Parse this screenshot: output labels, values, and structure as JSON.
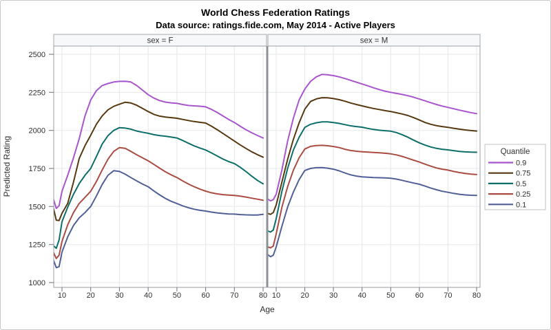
{
  "header": {
    "title": "World Chess Federation Ratings",
    "subtitle": "Data source: ratings.fide.com, May 2014 - Active Players"
  },
  "chart_data": {
    "type": "line",
    "title": "World Chess Federation Ratings",
    "subtitle": "Data source: ratings.fide.com, May 2014 - Active Players",
    "xlabel": "Age",
    "ylabel": "Predicted Rating",
    "xlim": [
      7,
      81
    ],
    "ylim": [
      1000,
      2500
    ],
    "grid": "on",
    "x_ticks": [
      10,
      20,
      30,
      40,
      50,
      60,
      70,
      80
    ],
    "y_ticks": [
      1000,
      1250,
      1500,
      1750,
      2000,
      2250,
      2500
    ],
    "legend": {
      "title": "Quantile",
      "position": "right",
      "labels": [
        "0.9",
        "0.75",
        "0.5",
        "0.25",
        "0.1"
      ]
    },
    "ages": [
      7,
      8,
      9,
      10,
      12,
      14,
      16,
      18,
      20,
      22,
      24,
      26,
      28,
      30,
      32,
      34,
      36,
      38,
      40,
      42,
      44,
      46,
      48,
      50,
      52,
      54,
      56,
      58,
      60,
      62,
      64,
      66,
      68,
      70,
      72,
      74,
      76,
      78,
      80
    ],
    "panels": [
      {
        "label": "sex = F",
        "key": "F",
        "series": [
          {
            "name": "0.9",
            "color": "#a854cd",
            "values": [
              1550,
              1487,
              1505,
              1600,
              1705,
              1820,
              1945,
              2095,
              2200,
              2262,
              2295,
              2308,
              2318,
              2322,
              2323,
              2318,
              2295,
              2265,
              2235,
              2212,
              2196,
              2186,
              2181,
              2178,
              2170,
              2164,
              2161,
              2159,
              2155,
              2138,
              2118,
              2095,
              2072,
              2052,
              2028,
              2005,
              1985,
              1967,
              1950
            ]
          },
          {
            "name": "0.75",
            "color": "#56370f",
            "values": [
              1492,
              1410,
              1408,
              1455,
              1520,
              1660,
              1815,
              1900,
              1968,
              2042,
              2095,
              2135,
              2158,
              2172,
              2185,
              2180,
              2165,
              2145,
              2124,
              2105,
              2094,
              2088,
              2084,
              2080,
              2072,
              2065,
              2058,
              2053,
              2048,
              2028,
              2005,
              1980,
              1955,
              1930,
              1905,
              1882,
              1860,
              1841,
              1824
            ]
          },
          {
            "name": "0.5",
            "color": "#0b6e68",
            "values": [
              1243,
              1225,
              1280,
              1400,
              1495,
              1580,
              1650,
              1705,
              1750,
              1830,
              1910,
              1965,
              2000,
              2018,
              2015,
              2008,
              1996,
              1988,
              1981,
              1972,
              1966,
              1962,
              1956,
              1950,
              1934,
              1916,
              1898,
              1884,
              1871,
              1852,
              1832,
              1812,
              1795,
              1782,
              1758,
              1730,
              1700,
              1672,
              1649
            ]
          },
          {
            "name": "0.25",
            "color": "#a94b41",
            "values": [
              1200,
              1158,
              1180,
              1270,
              1380,
              1460,
              1520,
              1560,
              1600,
              1665,
              1740,
              1810,
              1862,
              1887,
              1882,
              1862,
              1840,
              1820,
              1800,
              1776,
              1752,
              1728,
              1708,
              1690,
              1668,
              1648,
              1630,
              1614,
              1601,
              1590,
              1583,
              1578,
              1575,
              1573,
              1568,
              1562,
              1555,
              1548,
              1541
            ]
          },
          {
            "name": "0.1",
            "color": "#4f5f96",
            "values": [
              1150,
              1098,
              1105,
              1200,
              1300,
              1375,
              1425,
              1460,
              1500,
              1570,
              1645,
              1705,
              1735,
              1730,
              1712,
              1690,
              1668,
              1648,
              1630,
              1602,
              1576,
              1553,
              1534,
              1519,
              1504,
              1492,
              1482,
              1475,
              1470,
              1463,
              1458,
              1454,
              1451,
              1450,
              1447,
              1445,
              1444,
              1444,
              1448
            ]
          }
        ]
      },
      {
        "label": "sex = M",
        "key": "M",
        "series": [
          {
            "name": "0.9",
            "color": "#a854cd",
            "values": [
              1550,
              1537,
              1545,
              1580,
              1740,
              1930,
              2080,
              2200,
              2272,
              2322,
              2352,
              2368,
              2366,
              2360,
              2352,
              2341,
              2329,
              2317,
              2305,
              2293,
              2280,
              2268,
              2258,
              2250,
              2243,
              2236,
              2228,
              2218,
              2206,
              2194,
              2182,
              2170,
              2160,
              2151,
              2142,
              2133,
              2125,
              2117,
              2110
            ]
          },
          {
            "name": "0.75",
            "color": "#56370f",
            "values": [
              1455,
              1448,
              1460,
              1510,
              1660,
              1810,
              1940,
              2050,
              2140,
              2190,
              2207,
              2215,
              2214,
              2209,
              2202,
              2192,
              2180,
              2170,
              2161,
              2152,
              2144,
              2137,
              2130,
              2124,
              2116,
              2108,
              2098,
              2084,
              2068,
              2052,
              2040,
              2031,
              2025,
              2020,
              2014,
              2008,
              2003,
              1999,
              1996
            ]
          },
          {
            "name": "0.5",
            "color": "#0b6e68",
            "values": [
              1340,
              1332,
              1345,
              1420,
              1600,
              1750,
              1870,
              1955,
              2020,
              2040,
              2050,
              2056,
              2056,
              2052,
              2046,
              2038,
              2030,
              2025,
              2021,
              2013,
              2006,
              2001,
              1998,
              1995,
              1986,
              1972,
              1955,
              1936,
              1918,
              1903,
              1891,
              1882,
              1876,
              1872,
              1867,
              1862,
              1859,
              1857,
              1856
            ]
          },
          {
            "name": "0.25",
            "color": "#a94b41",
            "values": [
              1235,
              1228,
              1240,
              1320,
              1495,
              1630,
              1738,
              1820,
              1878,
              1895,
              1900,
              1902,
              1899,
              1894,
              1887,
              1876,
              1868,
              1863,
              1860,
              1857,
              1855,
              1853,
              1850,
              1846,
              1839,
              1829,
              1817,
              1804,
              1792,
              1778,
              1765,
              1753,
              1745,
              1739,
              1730,
              1723,
              1717,
              1713,
              1710
            ]
          },
          {
            "name": "0.1",
            "color": "#4f5f96",
            "values": [
              1185,
              1170,
              1180,
              1234,
              1370,
              1496,
              1594,
              1677,
              1737,
              1750,
              1755,
              1756,
              1752,
              1745,
              1734,
              1720,
              1708,
              1700,
              1695,
              1692,
              1690,
              1689,
              1688,
              1686,
              1680,
              1672,
              1663,
              1654,
              1646,
              1634,
              1621,
              1610,
              1600,
              1593,
              1586,
              1580,
              1576,
              1574,
              1573
            ]
          }
        ]
      }
    ]
  }
}
